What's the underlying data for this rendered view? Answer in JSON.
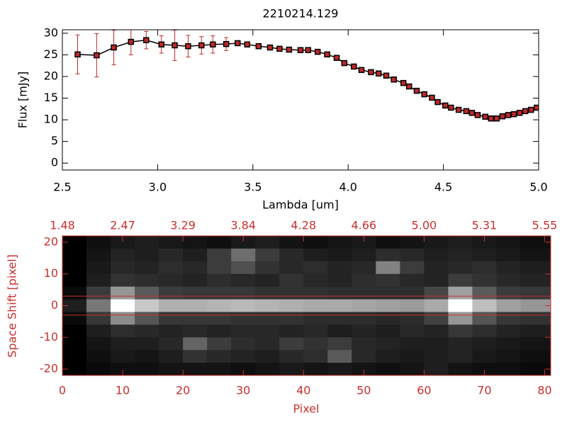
{
  "chart_data": [
    {
      "type": "line",
      "title": "2210214.129",
      "x_label": "Lambda [um]",
      "y_label": "Flux [mJy]",
      "xlim": [
        2.5,
        5.0
      ],
      "xticks": [
        2.5,
        {
          "value": 3,
          "label": "3.0"
        },
        3.5,
        {
          "value": 4,
          "label": "4.0"
        },
        4.5,
        {
          "value": 5,
          "label": "5.0"
        }
      ],
      "ylim": [
        -1.6,
        30.8
      ],
      "yticks": [
        0,
        5,
        10,
        15,
        20,
        25,
        30
      ],
      "series": [
        {
          "color": "#000000",
          "marker_color": "#c0282a",
          "error_color": "#c0282a",
          "x": [
            2.58,
            2.68,
            2.77,
            2.86,
            2.94,
            3.02,
            3.09,
            3.16,
            3.23,
            3.29,
            3.36,
            3.42,
            3.47,
            3.53,
            3.59,
            3.64,
            3.69,
            3.75,
            3.79,
            3.84,
            3.89,
            3.94,
            3.98,
            4.03,
            4.07,
            4.12,
            4.16,
            4.2,
            4.24,
            4.29,
            4.32,
            4.36,
            4.4,
            4.44,
            4.47,
            4.51,
            4.54,
            4.58,
            4.62,
            4.65,
            4.68,
            4.72,
            4.75,
            4.78,
            4.81,
            4.84,
            4.87,
            4.9,
            4.93,
            4.96,
            4.99
          ],
          "values": [
            25.1,
            24.9,
            26.7,
            28.0,
            28.4,
            27.4,
            27.2,
            27.0,
            27.2,
            27.4,
            27.5,
            27.7,
            27.4,
            27.0,
            26.7,
            26.4,
            26.2,
            26.1,
            26.1,
            25.7,
            25.1,
            24.3,
            23.1,
            22.3,
            21.5,
            21.0,
            20.7,
            20.2,
            19.3,
            18.5,
            17.7,
            16.7,
            15.9,
            15.1,
            14.1,
            13.3,
            12.8,
            12.3,
            12.0,
            11.6,
            11.1,
            10.7,
            10.3,
            10.3,
            10.8,
            11.1,
            11.3,
            11.6,
            12.0,
            12.3,
            12.8
          ],
          "errors": [
            4.5,
            5,
            4,
            3,
            2,
            2,
            3.5,
            2.5,
            2,
            2,
            1.5,
            0.5,
            0.5,
            0.5,
            0.5,
            0.5,
            0.5,
            0.5,
            0.5,
            0.5,
            0.5,
            0.5,
            0.5,
            0.5,
            0.5,
            0.5,
            0.5,
            0.5,
            0.5,
            0.5,
            0.5,
            0.5,
            0.5,
            0.5,
            0.5,
            0.5,
            0.5,
            0.5,
            0.5,
            0.5,
            0.5,
            0.5,
            0.5,
            0.5,
            0.5,
            0.5,
            0.5,
            0.5,
            0.5,
            0.5,
            0.5
          ]
        }
      ]
    },
    {
      "type": "heatmap",
      "x_label": "Pixel",
      "y_label": "Space Shift [pixel]",
      "axis_color": "#c8302f",
      "xlim": [
        0,
        81
      ],
      "xticks": [
        0,
        10,
        20,
        30,
        40,
        50,
        60,
        70,
        80
      ],
      "x2ticks": [
        {
          "value": 0,
          "label": "1.48"
        },
        {
          "value": 10,
          "label": "2.47"
        },
        {
          "value": 20,
          "label": "3.29"
        },
        {
          "value": 30,
          "label": "3.84"
        },
        {
          "value": 40,
          "label": "4.28"
        },
        {
          "value": 50,
          "label": "4.66"
        },
        {
          "value": 60,
          "label": "5.00"
        },
        {
          "value": 70,
          "label": "5.31"
        },
        {
          "value": 80,
          "label": "5.55"
        }
      ],
      "ylim": [
        -22,
        22
      ],
      "yticks": [
        -20,
        -10,
        0,
        10,
        20
      ],
      "aperture": [
        -3,
        3
      ],
      "x_edges": [
        0,
        4,
        8,
        12,
        16,
        20,
        24,
        28,
        32,
        36,
        40,
        44,
        48,
        52,
        56,
        60,
        64,
        68,
        72,
        76,
        81
      ],
      "y_edges": [
        22,
        18,
        14,
        10,
        6,
        2,
        -2,
        -6,
        -10,
        -14,
        -18,
        -22
      ],
      "values": [
        [
          0,
          15,
          25,
          30,
          25,
          20,
          15,
          25,
          30,
          20,
          15,
          20,
          25,
          15,
          20,
          25,
          30,
          25,
          20,
          15
        ],
        [
          0,
          20,
          35,
          30,
          40,
          30,
          60,
          110,
          60,
          40,
          30,
          25,
          30,
          45,
          40,
          30,
          35,
          30,
          25,
          20
        ],
        [
          0,
          25,
          40,
          35,
          45,
          40,
          60,
          80,
          50,
          40,
          45,
          35,
          40,
          130,
          60,
          35,
          40,
          45,
          35,
          30
        ],
        [
          0,
          30,
          50,
          45,
          40,
          35,
          45,
          40,
          35,
          50,
          40,
          35,
          45,
          50,
          40,
          35,
          60,
          50,
          40,
          35
        ],
        [
          10,
          60,
          150,
          90,
          60,
          55,
          55,
          55,
          50,
          50,
          50,
          45,
          45,
          45,
          45,
          70,
          160,
          90,
          60,
          55
        ],
        [
          30,
          120,
          255,
          200,
          175,
          175,
          180,
          185,
          180,
          175,
          170,
          170,
          165,
          160,
          155,
          170,
          255,
          190,
          160,
          150
        ],
        [
          10,
          55,
          140,
          85,
          55,
          55,
          55,
          50,
          50,
          50,
          45,
          45,
          45,
          40,
          45,
          65,
          150,
          85,
          55,
          50
        ],
        [
          0,
          30,
          45,
          40,
          35,
          40,
          35,
          40,
          40,
          35,
          40,
          30,
          35,
          30,
          40,
          35,
          55,
          45,
          35,
          30
        ],
        [
          0,
          20,
          30,
          30,
          40,
          100,
          60,
          45,
          40,
          60,
          50,
          60,
          40,
          35,
          30,
          30,
          35,
          30,
          25,
          20
        ],
        [
          0,
          15,
          25,
          20,
          30,
          50,
          40,
          35,
          30,
          40,
          45,
          90,
          40,
          30,
          25,
          30,
          35,
          25,
          20,
          15
        ],
        [
          0,
          10,
          15,
          15,
          20,
          20,
          20,
          15,
          20,
          25,
          20,
          25,
          20,
          15,
          20,
          30,
          20,
          15,
          15,
          10
        ]
      ]
    }
  ]
}
